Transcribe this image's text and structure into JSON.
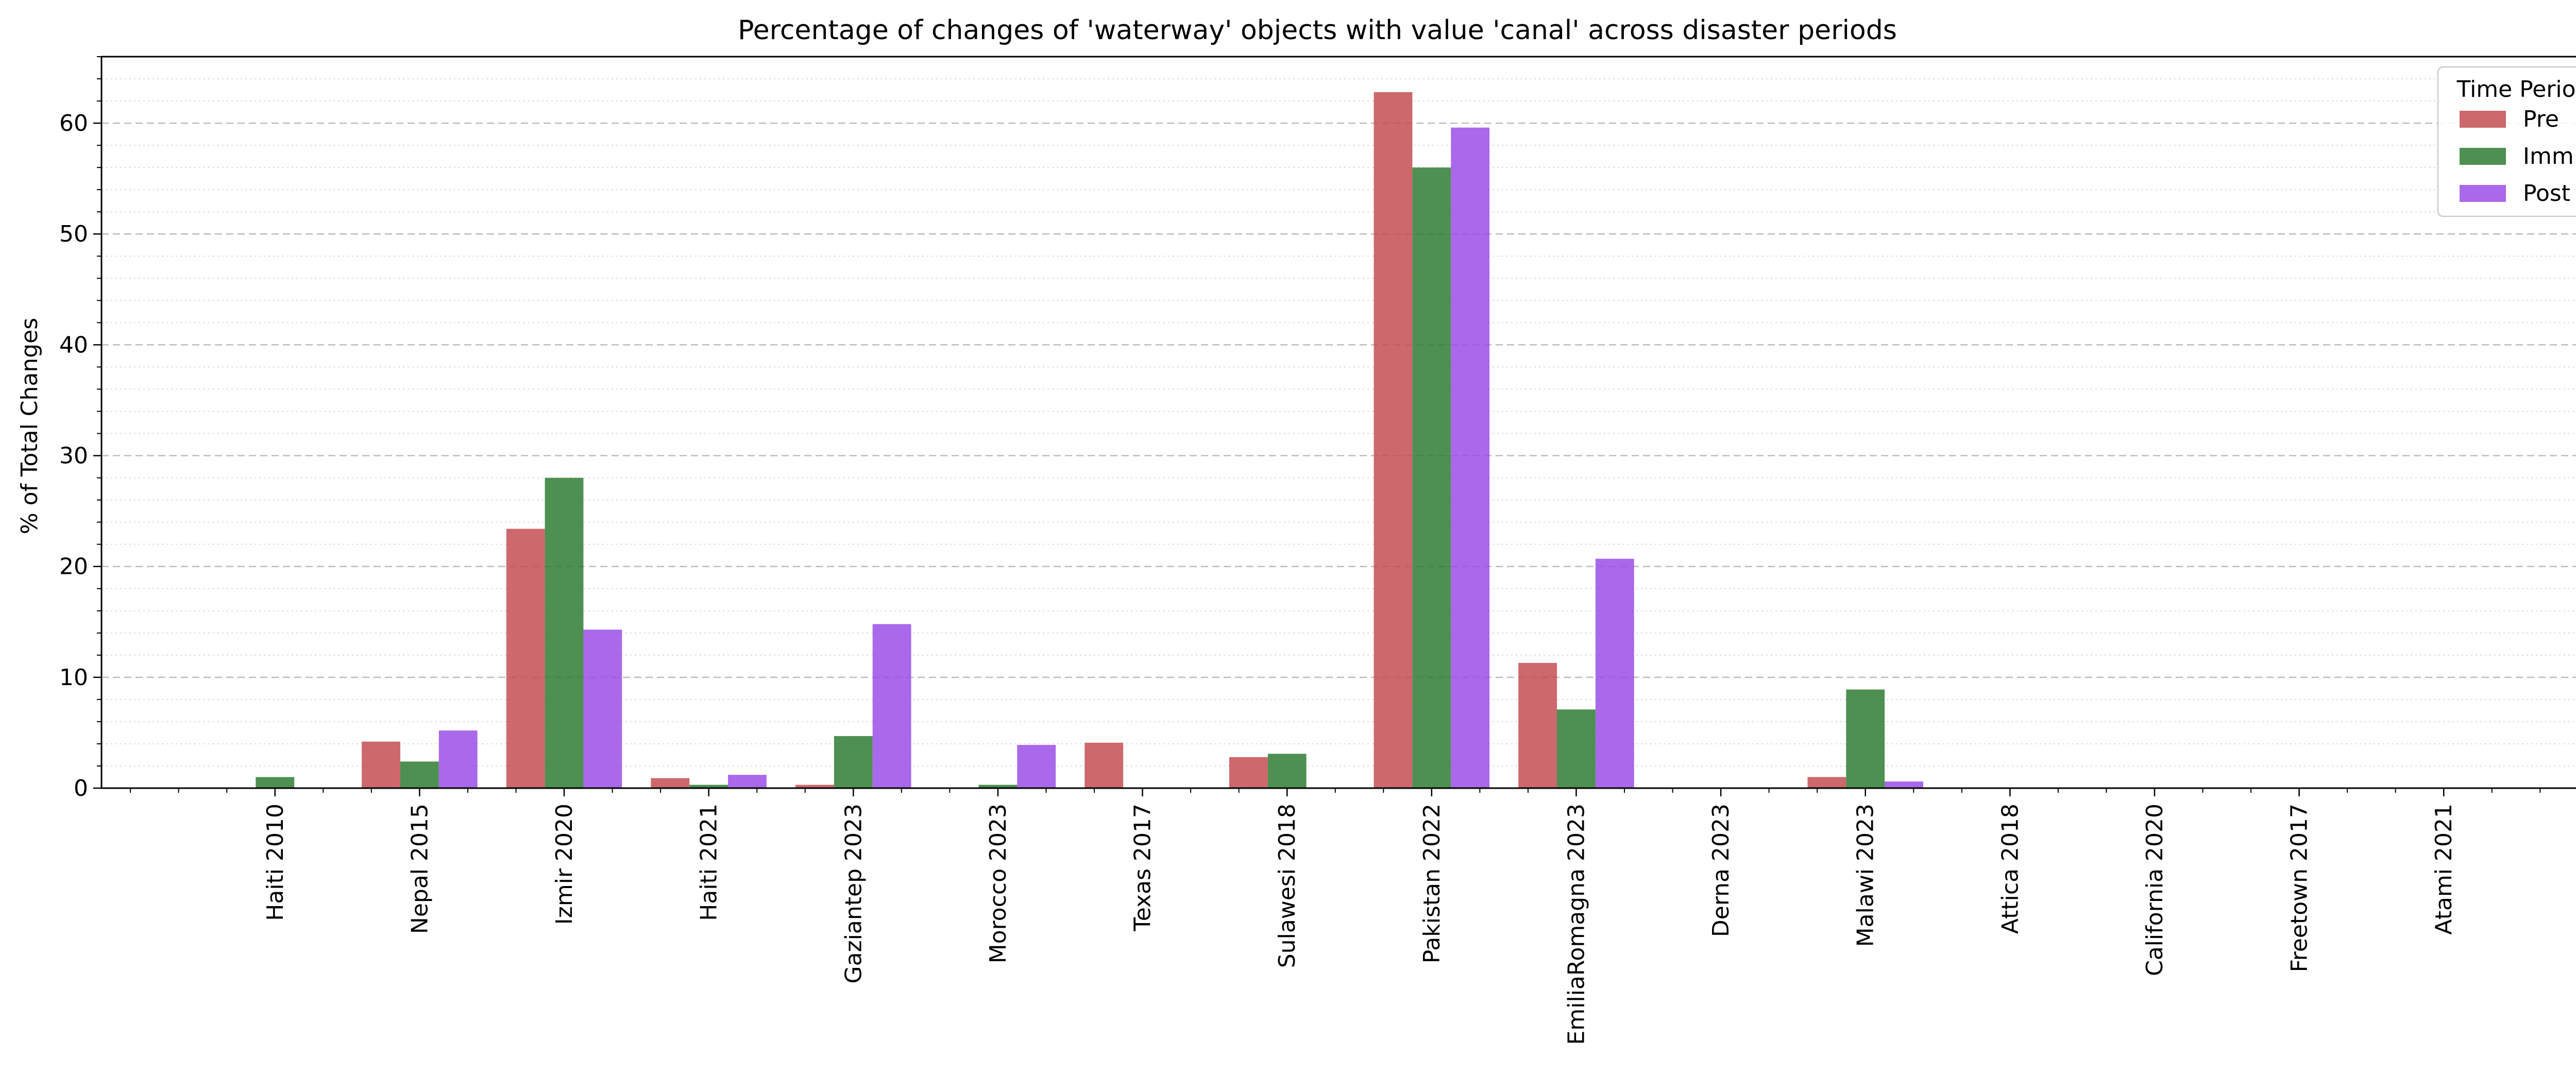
{
  "chart_data": {
    "type": "bar",
    "title": "Percentage of changes of 'waterway' objects with value 'canal' across disaster periods",
    "xlabel": "",
    "ylabel": "% of Total Changes",
    "ylim": [
      0,
      66
    ],
    "yticks": [
      0,
      10,
      20,
      30,
      40,
      50,
      60
    ],
    "grid": "y-major-dashed, y-minor-dotted",
    "legend": {
      "title": "Time Period",
      "placement": "top-right"
    },
    "categories": [
      "Haiti 2010",
      "Nepal 2015",
      "Izmir 2020",
      "Haiti 2021",
      "Gaziantep 2023",
      "Morocco 2023",
      "Texas 2017",
      "Sulawesi 2018",
      "Pakistan 2022",
      "EmiliaRomagna 2023",
      "Derna 2023",
      "Malawi 2023",
      "Attica 2018",
      "California 2020",
      "Freetown 2017",
      "Atami 2021"
    ],
    "series": [
      {
        "name": "Pre",
        "color": "#c44e52",
        "values": [
          0,
          4.2,
          23.4,
          0.9,
          0.3,
          0,
          4.1,
          2.8,
          62.8,
          11.3,
          0,
          1.0,
          0,
          0,
          0,
          0
        ]
      },
      {
        "name": "Imm",
        "color": "#2e7d32",
        "values": [
          1.0,
          2.4,
          28.0,
          0.3,
          4.7,
          0.3,
          0,
          3.1,
          56.0,
          7.1,
          0,
          8.9,
          0,
          0,
          0,
          0
        ]
      },
      {
        "name": "Post",
        "color": "#9b4ee8",
        "values": [
          0,
          5.2,
          14.3,
          1.2,
          14.8,
          3.9,
          0,
          0,
          59.6,
          20.7,
          0,
          0.6,
          0,
          0,
          0,
          0
        ]
      }
    ]
  }
}
